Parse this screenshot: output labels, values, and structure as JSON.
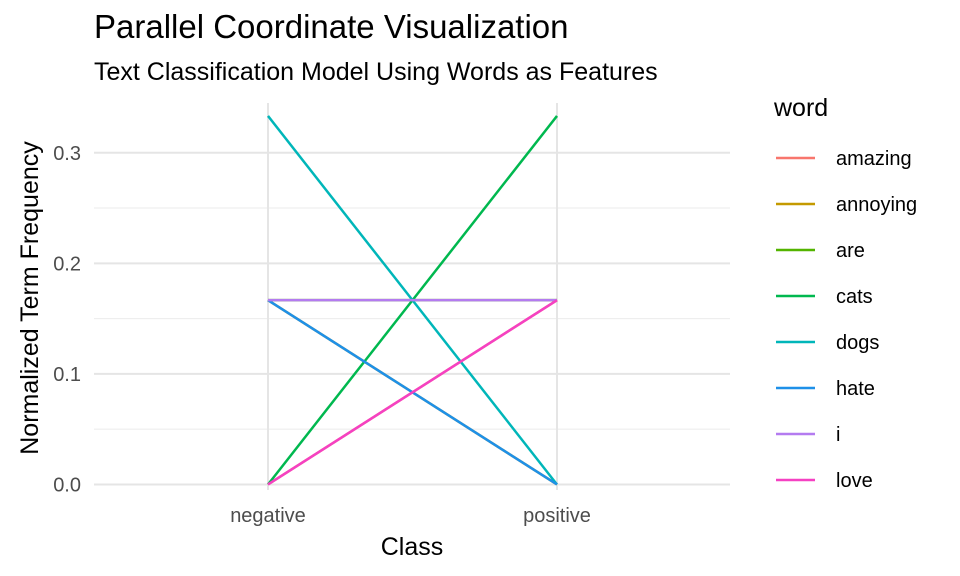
{
  "chart_data": {
    "type": "line",
    "title": "Parallel Coordinate Visualization",
    "subtitle": "Text Classification Model Using Words as Features",
    "xlabel": "Class",
    "ylabel": "Normalized Term Frequency",
    "categories": [
      "negative",
      "positive"
    ],
    "ylim": [
      -0.005,
      0.345
    ],
    "yticks": [
      "0.0",
      "0.1",
      "0.2",
      "0.3"
    ],
    "ytick_values": [
      0,
      0.1,
      0.2,
      0.3
    ],
    "grid": true,
    "legend_title": "word",
    "legend_position": "right",
    "series": [
      {
        "name": "amazing",
        "color": "#F8766D",
        "values": [
          0,
          0.1667
        ]
      },
      {
        "name": "annoying",
        "color": "#C49A00",
        "values": [
          0.1667,
          0
        ]
      },
      {
        "name": "are",
        "color": "#53B400",
        "values": [
          0.1667,
          0.1667
        ]
      },
      {
        "name": "cats",
        "color": "#00B84F",
        "values": [
          0,
          0.3333
        ]
      },
      {
        "name": "dogs",
        "color": "#00B6B9",
        "values": [
          0.3333,
          0
        ]
      },
      {
        "name": "hate",
        "color": "#1E90E8",
        "values": [
          0.1667,
          0
        ]
      },
      {
        "name": "i",
        "color": "#B47BF0",
        "values": [
          0.1667,
          0.1667
        ]
      },
      {
        "name": "love",
        "color": "#F541C2",
        "values": [
          0,
          0.1667
        ]
      }
    ]
  }
}
